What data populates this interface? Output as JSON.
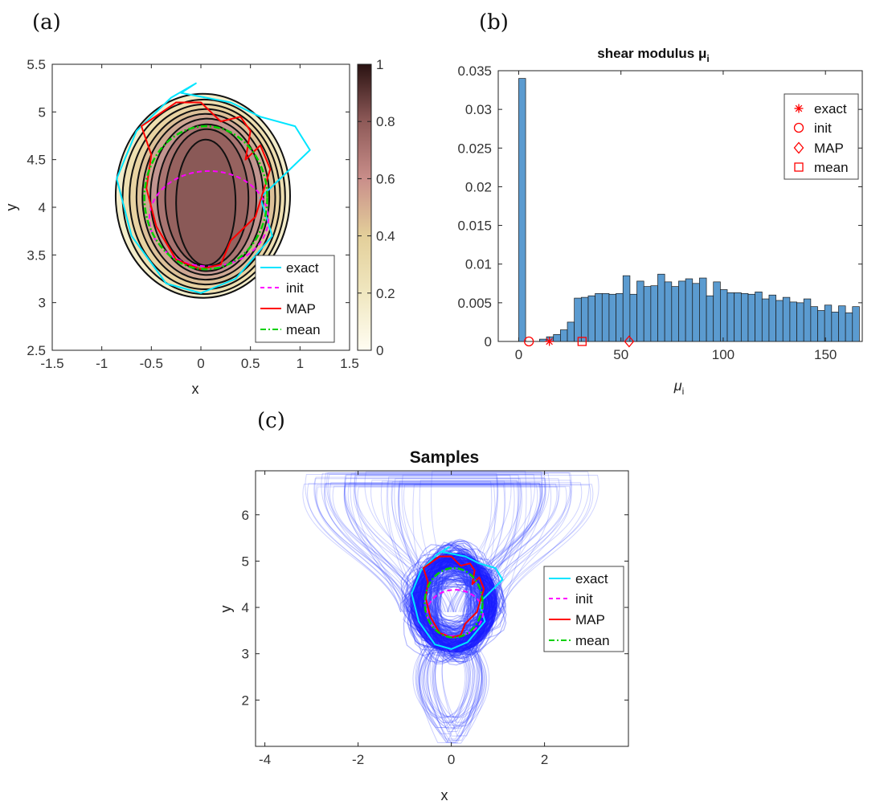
{
  "panels": {
    "a": "(a)",
    "b": "(b)",
    "c": "(c)"
  },
  "colors": {
    "exact": "#00e5ff",
    "init": "#ff00ff",
    "map": "#ff0000",
    "mean": "#00d000",
    "bar": "#5b9bd0",
    "samples": "#2a3aff"
  },
  "chart_data": [
    {
      "id": "a",
      "type": "contour",
      "title": "",
      "xlabel": "x",
      "ylabel": "y",
      "xlim": [
        -1.5,
        1.5
      ],
      "ylim": [
        2.5,
        5.5
      ],
      "xticks": [
        -1.5,
        -1,
        -0.5,
        0,
        0.5,
        1,
        1.5
      ],
      "xtick_labels": [
        "-1.5",
        "-1",
        "-0.5",
        "0",
        "0.5",
        "1",
        "1.5"
      ],
      "yticks": [
        2.5,
        3,
        3.5,
        4,
        4.5,
        5,
        5.5
      ],
      "ytick_labels": [
        "2.5",
        "3",
        "3.5",
        "4",
        "4.5",
        "5",
        "5.5"
      ],
      "colorbar": {
        "min": 0,
        "max": 1,
        "ticks": [
          0,
          0.2,
          0.4,
          0.6,
          0.8,
          1
        ],
        "tick_labels": [
          "0",
          "0.2",
          "0.4",
          "0.6",
          "0.8",
          "1"
        ]
      },
      "contour_levels": [
        {
          "cx": 0.02,
          "cy": 4.12,
          "rx": 0.88,
          "ry": 1.07
        },
        {
          "cx": 0.03,
          "cy": 4.11,
          "rx": 0.82,
          "ry": 1.02
        },
        {
          "cx": 0.04,
          "cy": 4.11,
          "rx": 0.76,
          "ry": 0.97
        },
        {
          "cx": 0.05,
          "cy": 4.11,
          "rx": 0.7,
          "ry": 0.92
        },
        {
          "cx": 0.05,
          "cy": 4.11,
          "rx": 0.64,
          "ry": 0.87
        },
        {
          "cx": 0.06,
          "cy": 4.11,
          "rx": 0.57,
          "ry": 0.82
        },
        {
          "cx": 0.06,
          "cy": 4.1,
          "rx": 0.5,
          "ry": 0.77
        },
        {
          "cx": 0.06,
          "cy": 4.1,
          "rx": 0.42,
          "ry": 0.72
        },
        {
          "cx": 0.05,
          "cy": 4.05,
          "rx": 0.3,
          "ry": 0.66
        }
      ],
      "curves": {
        "exact": {
          "x": [
            -0.05,
            -0.3,
            -0.65,
            -0.85,
            -0.7,
            -0.35,
            0.0,
            0.35,
            0.72,
            0.6,
            0.85,
            1.1,
            0.95,
            0.6,
            0.3,
            -0.2,
            -0.05
          ],
          "y": [
            5.3,
            5.15,
            4.8,
            4.3,
            3.7,
            3.2,
            3.1,
            3.25,
            3.7,
            4.1,
            4.35,
            4.6,
            4.85,
            4.95,
            5.1,
            5.2,
            5.3
          ]
        },
        "init": {
          "cx": 0.08,
          "cy": 3.88,
          "rx": 0.6,
          "ry": 0.5
        },
        "map": {
          "x": [
            -0.25,
            -0.6,
            -0.5,
            -0.55,
            -0.45,
            -0.25,
            0.0,
            0.2,
            0.3,
            0.55,
            0.7,
            0.6,
            0.45,
            0.5,
            0.4,
            0.2,
            0.0,
            -0.25
          ],
          "y": [
            5.1,
            4.85,
            4.55,
            4.2,
            3.8,
            3.45,
            3.35,
            3.4,
            3.65,
            3.9,
            4.4,
            4.65,
            4.5,
            4.8,
            4.95,
            4.9,
            5.1,
            5.1
          ]
        },
        "mean": {
          "cx": 0.05,
          "cy": 4.1,
          "rx": 0.62,
          "ry": 0.75
        }
      },
      "legend": [
        "exact",
        "init",
        "MAP",
        "mean"
      ],
      "legend_position": "bottom-right"
    },
    {
      "id": "b",
      "type": "bar",
      "title": "shear modulus μ",
      "title_subscript": "i",
      "xlabel": "μ",
      "xlabel_subscript": "i",
      "ylabel": "",
      "xlim": [
        -10,
        168
      ],
      "ylim": [
        0,
        0.035
      ],
      "xticks": [
        0,
        50,
        100,
        150
      ],
      "xtick_labels": [
        "0",
        "50",
        "100",
        "150"
      ],
      "yticks": [
        0,
        0.005,
        0.01,
        0.015,
        0.02,
        0.025,
        0.03,
        0.035
      ],
      "ytick_labels": [
        "0",
        "0.005",
        "0.01",
        "0.015",
        "0.02",
        "0.025",
        "0.03",
        "0.035"
      ],
      "bin_start": 0,
      "bin_width": 3.4,
      "values": [
        0.034,
        0.0,
        0.0,
        0.0003,
        0.0006,
        0.0009,
        0.0015,
        0.0025,
        0.0056,
        0.0057,
        0.0059,
        0.0062,
        0.0062,
        0.0061,
        0.0062,
        0.0085,
        0.0061,
        0.0078,
        0.0071,
        0.0072,
        0.0087,
        0.0077,
        0.0071,
        0.0078,
        0.0081,
        0.0075,
        0.0082,
        0.0059,
        0.0077,
        0.0067,
        0.0063,
        0.0063,
        0.0062,
        0.0061,
        0.0064,
        0.0055,
        0.006,
        0.0053,
        0.0057,
        0.0051,
        0.005,
        0.0055,
        0.0045,
        0.004,
        0.0047,
        0.0038,
        0.0046,
        0.0037,
        0.0045
      ],
      "markers": [
        {
          "name": "exact",
          "symbol": "asterisk",
          "x": 15,
          "y": 0
        },
        {
          "name": "init",
          "symbol": "circle",
          "x": 5,
          "y": 0
        },
        {
          "name": "MAP",
          "symbol": "diamond",
          "x": 54,
          "y": 0
        },
        {
          "name": "mean",
          "symbol": "square",
          "x": 31,
          "y": 0
        }
      ],
      "legend": [
        "exact",
        "init",
        "MAP",
        "mean"
      ],
      "legend_position": "top-right"
    },
    {
      "id": "c",
      "type": "line",
      "title": "Samples",
      "xlabel": "x",
      "ylabel": "y",
      "xlim": [
        -4.2,
        3.8
      ],
      "ylim": [
        1.0,
        6.95
      ],
      "xticks": [
        -4,
        -2,
        0,
        2
      ],
      "xtick_labels": [
        "-4",
        "-2",
        "0",
        "2"
      ],
      "yticks": [
        2,
        3,
        4,
        5,
        6
      ],
      "ytick_labels": [
        "2",
        "3",
        "4",
        "5",
        "6"
      ],
      "curves": {
        "exact": {
          "x": [
            -0.05,
            -0.3,
            -0.65,
            -0.85,
            -0.7,
            -0.35,
            0.0,
            0.35,
            0.72,
            0.6,
            0.85,
            1.1,
            0.95,
            0.6,
            0.3,
            -0.2,
            -0.05
          ],
          "y": [
            5.3,
            5.15,
            4.8,
            4.3,
            3.7,
            3.2,
            3.1,
            3.25,
            3.7,
            4.1,
            4.35,
            4.6,
            4.85,
            4.95,
            5.1,
            5.2,
            5.3
          ]
        },
        "init": {
          "cx": 0.08,
          "cy": 3.88,
          "rx": 0.6,
          "ry": 0.5
        },
        "map": {
          "x": [
            -0.25,
            -0.6,
            -0.5,
            -0.55,
            -0.45,
            -0.25,
            0.0,
            0.2,
            0.3,
            0.55,
            0.7,
            0.6,
            0.45,
            0.5,
            0.4,
            0.2,
            0.0,
            -0.25
          ],
          "y": [
            5.1,
            4.85,
            4.55,
            4.2,
            3.8,
            3.45,
            3.35,
            3.4,
            3.65,
            3.9,
            4.4,
            4.65,
            4.5,
            4.8,
            4.95,
            4.9,
            5.1,
            5.1
          ]
        },
        "mean": {
          "cx": 0.05,
          "cy": 4.1,
          "rx": 0.62,
          "ry": 0.75
        }
      },
      "samples_description": "many translucent blue sample boundaries concentrated around (0, 4) with some extending up to y≈6.9 and down to y≈1.1",
      "legend": [
        "exact",
        "init",
        "MAP",
        "mean"
      ],
      "legend_position": "right"
    }
  ]
}
